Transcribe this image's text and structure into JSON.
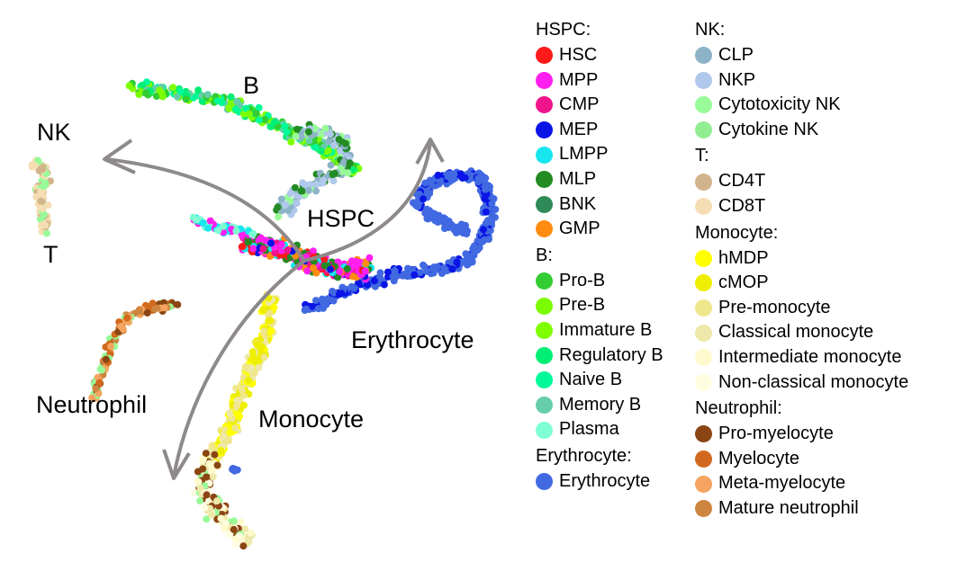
{
  "cluster_labels": {
    "b": "B",
    "nk": "NK",
    "t": "T",
    "hspc": "HSPC",
    "erythrocyte": "Erythrocyte",
    "neutrophil": "Neutrophil",
    "monocyte": "Monocyte"
  },
  "legend": {
    "left": [
      {
        "title": "HSPC:",
        "items": [
          {
            "label": "HSC",
            "color": "#ff1a1a"
          },
          {
            "label": "MPP",
            "color": "#ff1ff0"
          },
          {
            "label": "CMP",
            "color": "#f0148c"
          },
          {
            "label": "MEP",
            "color": "#0a14e6"
          },
          {
            "label": "LMPP",
            "color": "#18e6ef"
          },
          {
            "label": "MLP",
            "color": "#228b22"
          },
          {
            "label": "BNK",
            "color": "#2e8b57"
          },
          {
            "label": "GMP",
            "color": "#ff8c10"
          }
        ]
      },
      {
        "title": "B:",
        "items": [
          {
            "label": "Pro-B",
            "color": "#32cd32"
          },
          {
            "label": "Pre-B",
            "color": "#7cfc00"
          },
          {
            "label": "Immature B",
            "color": "#7fff00"
          },
          {
            "label": "Regulatory B",
            "color": "#00ee76"
          },
          {
            "label": "Naive B",
            "color": "#00fa9a"
          },
          {
            "label": "Memory B",
            "color": "#66cdaa"
          },
          {
            "label": "Plasma",
            "color": "#7fffd4"
          }
        ]
      },
      {
        "title": "Erythrocyte:",
        "items": [
          {
            "label": "Erythrocyte",
            "color": "#4169e1"
          }
        ]
      }
    ],
    "right": [
      {
        "title": "NK:",
        "items": [
          {
            "label": "CLP",
            "color": "#8db3c8"
          },
          {
            "label": "NKP",
            "color": "#b0c8ec"
          },
          {
            "label": "Cytotoxicity NK",
            "color": "#98fb98"
          },
          {
            "label": "Cytokine NK",
            "color": "#90ee90"
          }
        ]
      },
      {
        "title": "T:",
        "items": [
          {
            "label": "CD4T",
            "color": "#d2b48c"
          },
          {
            "label": "CD8T",
            "color": "#f5deb3"
          }
        ]
      },
      {
        "title": "Monocyte:",
        "items": [
          {
            "label": "hMDP",
            "color": "#ffff00"
          },
          {
            "label": "cMOP",
            "color": "#eeee00"
          },
          {
            "label": "Pre-monocyte",
            "color": "#f0e68c"
          },
          {
            "label": "Classical monocyte",
            "color": "#eee8aa"
          },
          {
            "label": "Intermediate monocyte",
            "color": "#fffacd"
          },
          {
            "label": "Non-classical monocyte",
            "color": "#fffde0"
          }
        ]
      },
      {
        "title": "Neutrophil:",
        "items": [
          {
            "label": "Pro-myelocyte",
            "color": "#8b4513"
          },
          {
            "label": "Myelocyte",
            "color": "#d2691e"
          },
          {
            "label": "Meta-myelocyte",
            "color": "#f4a460"
          },
          {
            "label": "Mature neutrophil",
            "color": "#cd853f"
          }
        ]
      }
    ]
  },
  "arrow_color": "#8e8a8a"
}
